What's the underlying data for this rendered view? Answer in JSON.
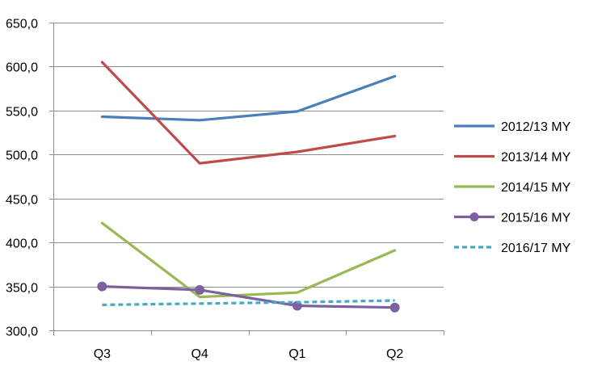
{
  "chart_data": {
    "type": "line",
    "title": "",
    "xlabel": "",
    "ylabel": "",
    "categories": [
      "Q3",
      "Q4",
      "Q1",
      "Q2"
    ],
    "ylim": [
      300,
      650
    ],
    "yticks": [
      300,
      350,
      400,
      450,
      500,
      550,
      600,
      650
    ],
    "ytick_labels": [
      "300,0",
      "350,0",
      "400,0",
      "450,0",
      "500,0",
      "550,0",
      "600,0",
      "650,0"
    ],
    "grid": true,
    "legend_position": "right",
    "series": [
      {
        "name": "2012/13 MY",
        "values": [
          543,
          539,
          549,
          589
        ],
        "color": "#4a7ebb",
        "dashed": false,
        "markers": false
      },
      {
        "name": "2013/14 MY",
        "values": [
          605,
          490,
          503,
          521
        ],
        "color": "#be4b48",
        "dashed": false,
        "markers": false
      },
      {
        "name": "2014/15 MY",
        "values": [
          422,
          338,
          343,
          391
        ],
        "color": "#98b954",
        "dashed": false,
        "markers": false
      },
      {
        "name": "2015/16 MY",
        "values": [
          350,
          346,
          328,
          326
        ],
        "color": "#7d60a0",
        "dashed": false,
        "markers": true
      },
      {
        "name": "2016/17 MY",
        "values": [
          329,
          null,
          332,
          334
        ],
        "color": "#46aac5",
        "dashed": true,
        "markers": false
      }
    ]
  }
}
